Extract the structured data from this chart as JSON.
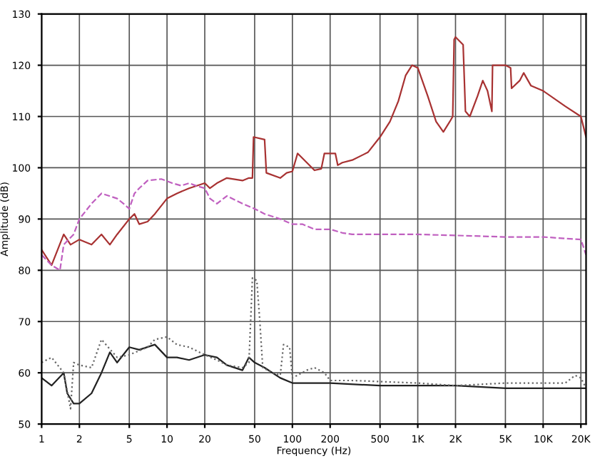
{
  "chart_data": {
    "type": "line",
    "xlabel": "Frequency (Hz)",
    "ylabel": "Amplitude (dB)",
    "log": "x",
    "grid": true,
    "xlim": [
      1,
      22000
    ],
    "ylim": [
      50,
      130
    ],
    "xticks": [
      1,
      2,
      5,
      10,
      20,
      50,
      100,
      200,
      500,
      {
        "value": 1000,
        "label": "1K"
      },
      {
        "value": 2000,
        "label": "2K"
      },
      {
        "value": 5000,
        "label": "5K"
      },
      {
        "value": 10000,
        "label": "10K"
      },
      {
        "value": 20000,
        "label": "20K"
      }
    ],
    "yticks": [
      50,
      60,
      70,
      80,
      90,
      100,
      110,
      120,
      130
    ],
    "series": [
      {
        "color": "#a83232",
        "line_style": "solid",
        "x": [
          1,
          1.2,
          1.5,
          1.7,
          2,
          2.5,
          3,
          3.5,
          4,
          5,
          5.5,
          6,
          7,
          8,
          10,
          12,
          15,
          20,
          22,
          25,
          30,
          40,
          45,
          48,
          49,
          60,
          62,
          80,
          90,
          100,
          110,
          150,
          170,
          180,
          220,
          230,
          250,
          300,
          400,
          500,
          600,
          700,
          800,
          900,
          1000,
          1200,
          1400,
          1600,
          1800,
          1900,
          1950,
          2000,
          2300,
          2400,
          2600,
          3000,
          3300,
          3600,
          3900,
          3950,
          5000,
          5500,
          5600,
          6500,
          7000,
          8000,
          10000,
          15000,
          20000,
          22000
        ],
        "values": [
          84,
          81,
          87,
          85,
          86,
          85,
          87,
          85,
          87,
          90,
          91,
          89,
          89.5,
          91,
          94,
          95,
          96,
          97,
          96,
          97,
          98,
          97.5,
          98,
          98,
          106,
          105.5,
          99,
          98,
          99,
          99.3,
          102.8,
          99.5,
          99.8,
          102.8,
          102.8,
          100.5,
          101,
          101.5,
          103,
          106,
          109,
          113,
          118,
          120,
          119.5,
          114,
          109,
          107,
          109,
          110,
          125,
          125.5,
          124,
          111,
          110,
          114,
          117,
          115,
          111,
          120,
          120,
          119.5,
          115.5,
          117,
          118.5,
          116,
          115,
          112,
          110,
          106
        ]
      },
      {
        "color": "#c060c0",
        "line_style": "dashed",
        "x": [
          1,
          1.2,
          1.4,
          1.5,
          1.8,
          2,
          2.5,
          3,
          4,
          4.5,
          5,
          5.5,
          6,
          7,
          9,
          11,
          13,
          15,
          17,
          20,
          22,
          25,
          30,
          40,
          50,
          60,
          80,
          100,
          120,
          150,
          200,
          250,
          300,
          500,
          1000,
          2000,
          5000,
          10000,
          20000,
          22000
        ],
        "values": [
          83,
          81,
          80,
          85,
          87,
          90,
          93,
          95,
          94,
          93,
          92,
          95,
          96,
          97.5,
          97.8,
          97,
          96.5,
          97,
          96.5,
          96,
          94,
          93,
          94.5,
          93,
          92,
          91,
          90,
          89,
          89,
          88,
          88,
          87.3,
          87,
          87,
          87,
          86.8,
          86.5,
          86.5,
          86,
          83
        ]
      },
      {
        "color": "#222222",
        "line_style": "solid",
        "x": [
          1,
          1.2,
          1.5,
          1.6,
          1.8,
          2,
          2.5,
          3,
          3.5,
          4,
          5,
          6,
          8,
          10,
          12,
          15,
          20,
          25,
          30,
          40,
          45,
          50,
          60,
          80,
          100,
          150,
          200,
          500,
          1000,
          2000,
          5000,
          10000,
          20000,
          22000
        ],
        "values": [
          59,
          57.5,
          60,
          56,
          54,
          54,
          56,
          60,
          64,
          62,
          65,
          64.5,
          65.5,
          63,
          63,
          62.5,
          63.5,
          63,
          61.5,
          60.5,
          63,
          62,
          61,
          59,
          58,
          58,
          58,
          57.5,
          57.5,
          57.5,
          57,
          57,
          57,
          57
        ]
      },
      {
        "color": "#666666",
        "line_style": "dotted",
        "x": [
          1,
          1.2,
          1.5,
          1.7,
          1.8,
          2,
          2.5,
          3,
          4,
          5,
          7,
          8,
          10,
          12,
          15,
          20,
          25,
          30,
          40,
          45,
          48,
          52,
          55,
          58,
          70,
          80,
          85,
          95,
          100,
          130,
          150,
          180,
          200,
          300,
          1000,
          2000,
          5000,
          10000,
          15000,
          18000,
          20000,
          22000
        ],
        "values": [
          62,
          63,
          60,
          53,
          62,
          61.5,
          61,
          66.5,
          63,
          63.5,
          65,
          66.5,
          67,
          65.5,
          65,
          63.5,
          62.5,
          61.5,
          61,
          62,
          78.5,
          78,
          70,
          61,
          60,
          59.5,
          65.5,
          65,
          59,
          60.5,
          61,
          60,
          58.5,
          58.5,
          58,
          57.5,
          58,
          58,
          58,
          59.5,
          59,
          57
        ]
      }
    ]
  }
}
